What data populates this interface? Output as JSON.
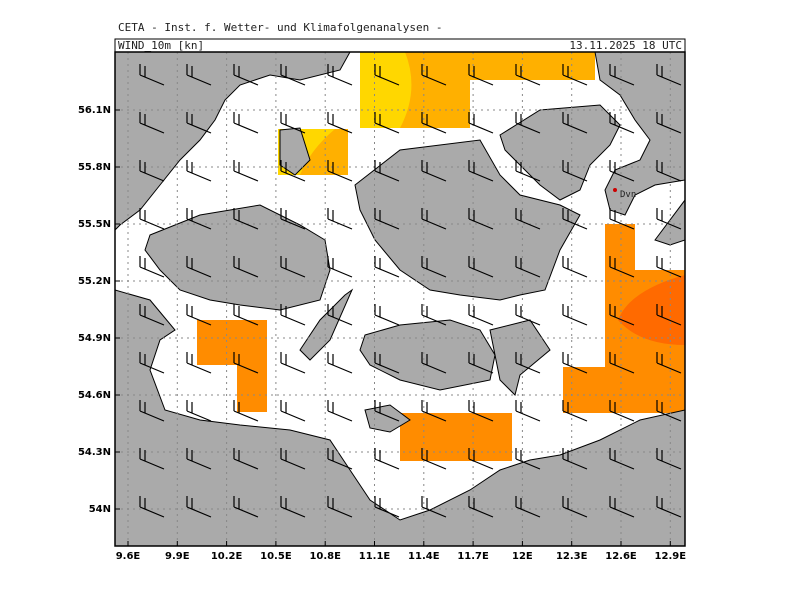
{
  "header": {
    "title": "CETA - Inst. f. Wetter- und Klimafolgenanalysen -",
    "variable": "WIND_10m [kn]",
    "time": "13.11.2025 18 UTC"
  },
  "map": {
    "station": "Dvn",
    "lat_labels": [
      "56.1N",
      "55.8N",
      "55.5N",
      "55.2N",
      "54.9N",
      "54.6N",
      "54.3N",
      "54N"
    ],
    "lon_labels": [
      "9.6E",
      "9.9E",
      "10.2E",
      "10.5E",
      "10.8E",
      "11.1E",
      "11.4E",
      "11.7E",
      "12E",
      "12.3E",
      "12.6E",
      "12.9E"
    ]
  }
}
